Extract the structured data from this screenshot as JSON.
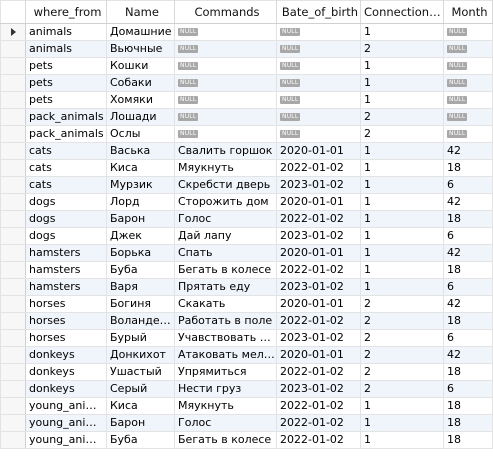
{
  "columns": [
    "where_from",
    "Name",
    "Commands",
    "Bate_of_birth",
    "Connection_id",
    "Month"
  ],
  "null_label": "NULL",
  "rows": [
    [
      "animals",
      "Домашние",
      null,
      null,
      "1",
      null
    ],
    [
      "animals",
      "Вьючные",
      null,
      null,
      "2",
      null
    ],
    [
      "pets",
      "Кошки",
      null,
      null,
      "1",
      null
    ],
    [
      "pets",
      "Собаки",
      null,
      null,
      "1",
      null
    ],
    [
      "pets",
      "Хомяки",
      null,
      null,
      "1",
      null
    ],
    [
      "pack_animals",
      "Лошади",
      null,
      null,
      "2",
      null
    ],
    [
      "pack_animals",
      "Ослы",
      null,
      null,
      "2",
      null
    ],
    [
      "cats",
      "Васька",
      "Свалить горшок",
      "2020-01-01",
      "1",
      "42"
    ],
    [
      "cats",
      "Киса",
      "Мяукнуть",
      "2022-01-02",
      "1",
      "18"
    ],
    [
      "cats",
      "Мурзик",
      "Скребсти дверь",
      "2023-01-02",
      "1",
      "6"
    ],
    [
      "dogs",
      "Лорд",
      "Сторожить дом",
      "2020-01-01",
      "1",
      "42"
    ],
    [
      "dogs",
      "Барон",
      "Голос",
      "2022-01-02",
      "1",
      "18"
    ],
    [
      "dogs",
      "Джек",
      "Дай лапу",
      "2023-01-02",
      "1",
      "6"
    ],
    [
      "hamsters",
      "Борька",
      "Спать",
      "2020-01-01",
      "1",
      "42"
    ],
    [
      "hamsters",
      "Буба",
      "Бегать в колесе",
      "2022-01-02",
      "1",
      "18"
    ],
    [
      "hamsters",
      "Варя",
      "Прятать еду",
      "2023-01-02",
      "1",
      "6"
    ],
    [
      "horses",
      "Богиня",
      "Скакать",
      "2020-01-01",
      "2",
      "42"
    ],
    [
      "horses",
      "Воландеморт",
      "Работать в поле",
      "2022-01-02",
      "2",
      "18"
    ],
    [
      "horses",
      "Бурый",
      "Учавствовать в скачках",
      "2023-01-02",
      "2",
      "6"
    ],
    [
      "donkeys",
      "Донкихот",
      "Атаковать мельницы",
      "2020-01-01",
      "2",
      "42"
    ],
    [
      "donkeys",
      "Ушастый",
      "Упрямиться",
      "2022-01-02",
      "2",
      "18"
    ],
    [
      "donkeys",
      "Серый",
      "Нести груз",
      "2023-01-02",
      "2",
      "6"
    ],
    [
      "young_animals",
      "Киса",
      "Мяукнуть",
      "2022-01-02",
      "1",
      "18"
    ],
    [
      "young_animals",
      "Барон",
      "Голос",
      "2022-01-02",
      "1",
      "18"
    ],
    [
      "young_animals",
      "Буба",
      "Бегать в колесе",
      "2022-01-02",
      "1",
      "18"
    ]
  ]
}
